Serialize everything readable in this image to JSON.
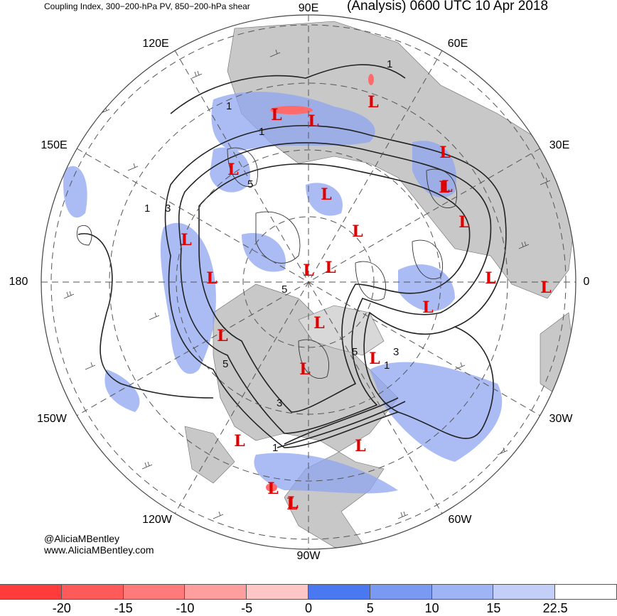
{
  "title_left": "Coupling Index, 300−200-hPa PV, 850−200-hPa shear",
  "title_right": "(Analysis) 0600 UTC 10 Apr 2018",
  "credit_handle": "@AliciaMBentley",
  "credit_url": "www.AliciaMBentley.com",
  "longitude_labels": {
    "lon_90e": "90E",
    "lon_60e": "60E",
    "lon_120e": "120E",
    "lon_30e": "30E",
    "lon_150e": "150E",
    "lon_180": "180",
    "lon_0": "0",
    "lon_150w": "150W",
    "lon_30w": "30W",
    "lon_120w": "120W",
    "lon_60w": "60W",
    "lon_90w": "90W"
  },
  "contour_labels": [
    "1",
    "1",
    "1",
    "1",
    "3",
    "5",
    "5",
    "5",
    "5",
    "3",
    "3",
    "1",
    "1"
  ],
  "low_marker": "L",
  "low_count": 26,
  "colorbar": {
    "colors": [
      "#ff3b3b",
      "#ff5a5a",
      "#ff7a7a",
      "#ff9e9e",
      "#ffc6c6",
      "#4a78f0",
      "#7a99f2",
      "#9fb4f5",
      "#c3cff8",
      "#ffffff"
    ],
    "ticks": [
      "-20",
      "-15",
      "-10",
      "-5",
      "0",
      "5",
      "10",
      "15",
      "22.5"
    ]
  },
  "colors": {
    "land": "#c8c8c8",
    "ocean": "#ffffff",
    "blue_fill": "#8fa6f2",
    "low_red": "#e00000"
  }
}
